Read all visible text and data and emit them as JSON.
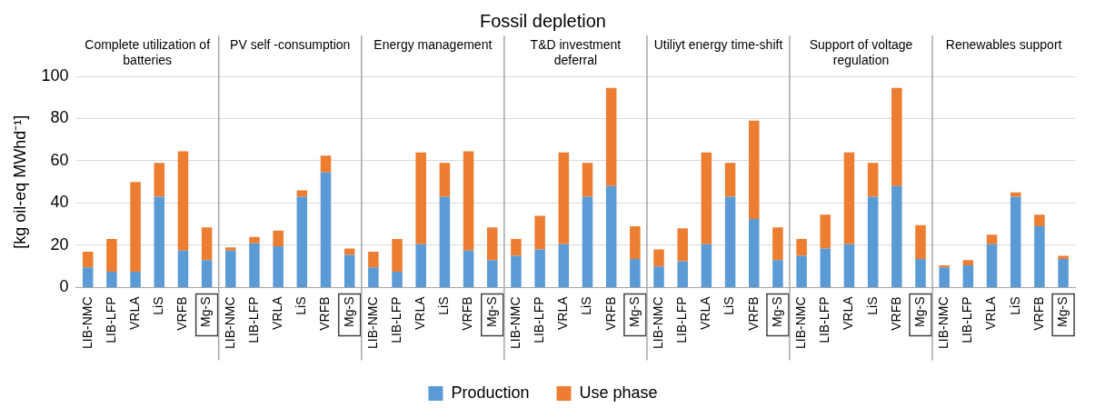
{
  "chart_data": {
    "type": "bar",
    "title": "Fossil depletion",
    "ylabel": "[kg oil-eq MWhd⁻¹]",
    "annotations": [
      "Complete utilization of batteries",
      "PV self -consumption",
      "Energy management",
      "T&D investment deferral",
      "Utiliyt energy time-shift",
      "Support of voltage regulation",
      "Renewables support"
    ],
    "categories": [
      "LIB-NMC",
      "LIB-LFP",
      "VRLA",
      "LiS",
      "VRFB",
      "Mg-S",
      "LIB-NMC",
      "LIB-LFP",
      "VRLA",
      "LiS",
      "VRFB",
      "Mg-S",
      "LIB-NMC",
      "LIB-LFP",
      "VRLA",
      "LiS",
      "VRFB",
      "Mg-S",
      "LIB-NMC",
      "LIB-LFP",
      "VRLA",
      "LiS",
      "VRFB",
      "Mg-S",
      "LIB-NMC",
      "LIB-LFP",
      "VRLA",
      "LiS",
      "VRFB",
      "Mg-S",
      "LIB-NMC",
      "LIB-LFP",
      "VRLA",
      "LiS",
      "VRFB",
      "Mg-S",
      "LIB-NMC",
      "LIB-LFP",
      "VRLA",
      "LiS",
      "VRFB",
      "Mg-S"
    ],
    "stacked": true,
    "ylim": [
      0,
      100
    ],
    "yticks": [
      0,
      20,
      40,
      60,
      80,
      100
    ],
    "grid": "y",
    "legend": "bottom",
    "series": [
      {
        "name": "Production",
        "color": "#5b9bd5",
        "values": [
          9.5,
          7.5,
          7.5,
          43,
          17.5,
          13,
          17.5,
          21,
          19.5,
          43,
          54.5,
          15.5,
          9.5,
          7.5,
          20.5,
          43,
          17.5,
          13,
          15,
          18,
          20.5,
          43,
          48,
          13.5,
          10,
          12.5,
          20.5,
          43,
          32.5,
          13,
          15,
          18.5,
          20.5,
          43,
          48,
          13.5,
          9.5,
          10.5,
          20.5,
          43,
          29,
          13.5
        ]
      },
      {
        "name": "Use phase",
        "color": "#ed7d31",
        "values": [
          7.5,
          15.5,
          42.5,
          16,
          47,
          15.5,
          1.5,
          3,
          7.5,
          3,
          8,
          3,
          7.5,
          15.5,
          43.5,
          16,
          47,
          15.5,
          8,
          16,
          43.5,
          16,
          46.5,
          15.5,
          8,
          15.5,
          43.5,
          16,
          46.5,
          15.5,
          8,
          16,
          43.5,
          16,
          46.5,
          16,
          1,
          2.5,
          4.5,
          2,
          5.5,
          1.5
        ]
      }
    ]
  }
}
